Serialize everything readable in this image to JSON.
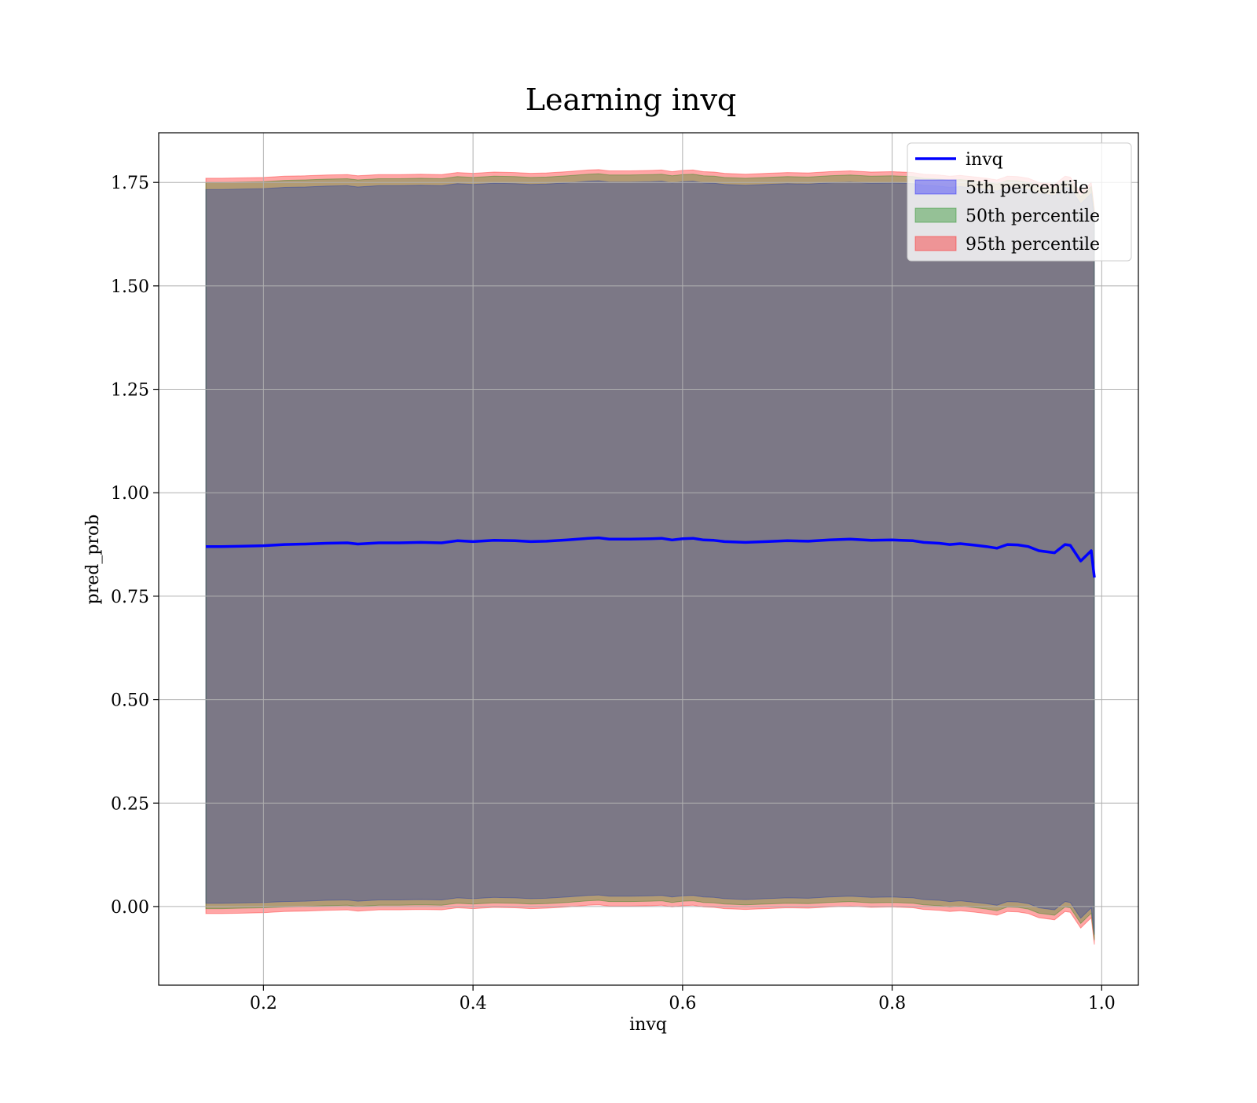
{
  "chart_data": {
    "type": "line",
    "title": "Learning invq",
    "xlabel": "invq",
    "ylabel": "pred_prob",
    "xlim": [
      0.1,
      1.035
    ],
    "ylim": [
      -0.19,
      1.87
    ],
    "grid": true,
    "legend_position": "top-right",
    "xticks": [
      {
        "value": 0.2,
        "label": "0.2"
      },
      {
        "value": 0.4,
        "label": "0.4"
      },
      {
        "value": 0.6,
        "label": "0.6"
      },
      {
        "value": 0.8,
        "label": "0.8"
      },
      {
        "value": 1.0,
        "label": "1.0"
      }
    ],
    "yticks": [
      {
        "value": 0.0,
        "label": "0.00"
      },
      {
        "value": 0.25,
        "label": "0.25"
      },
      {
        "value": 0.5,
        "label": "0.50"
      },
      {
        "value": 0.75,
        "label": "0.75"
      },
      {
        "value": 1.0,
        "label": "1.00"
      },
      {
        "value": 1.25,
        "label": "1.25"
      },
      {
        "value": 1.5,
        "label": "1.50"
      },
      {
        "value": 1.75,
        "label": "1.75"
      }
    ],
    "x": [
      0.145,
      0.16,
      0.18,
      0.2,
      0.22,
      0.24,
      0.26,
      0.28,
      0.29,
      0.31,
      0.33,
      0.35,
      0.37,
      0.385,
      0.4,
      0.42,
      0.44,
      0.455,
      0.47,
      0.49,
      0.51,
      0.52,
      0.53,
      0.55,
      0.57,
      0.58,
      0.59,
      0.6,
      0.61,
      0.62,
      0.63,
      0.64,
      0.66,
      0.68,
      0.7,
      0.72,
      0.74,
      0.76,
      0.78,
      0.8,
      0.82,
      0.83,
      0.845,
      0.855,
      0.865,
      0.88,
      0.89,
      0.9,
      0.91,
      0.92,
      0.93,
      0.94,
      0.955,
      0.965,
      0.97,
      0.98,
      0.99,
      0.993
    ],
    "series": [
      {
        "name": "invq",
        "color": "#0000ff",
        "values": [
          0.87,
          0.87,
          0.871,
          0.872,
          0.875,
          0.876,
          0.878,
          0.879,
          0.876,
          0.879,
          0.879,
          0.88,
          0.879,
          0.884,
          0.882,
          0.885,
          0.884,
          0.882,
          0.883,
          0.886,
          0.89,
          0.891,
          0.888,
          0.888,
          0.889,
          0.89,
          0.886,
          0.889,
          0.89,
          0.886,
          0.885,
          0.882,
          0.88,
          0.882,
          0.884,
          0.883,
          0.886,
          0.888,
          0.885,
          0.886,
          0.884,
          0.88,
          0.878,
          0.875,
          0.877,
          0.873,
          0.87,
          0.866,
          0.875,
          0.874,
          0.87,
          0.86,
          0.855,
          0.875,
          0.873,
          0.835,
          0.86,
          0.795
        ]
      }
    ],
    "bands": [
      {
        "name": "5th percentile",
        "color": "#0000ff",
        "lower": [
          0.008,
          0.008,
          0.009,
          0.01,
          0.012,
          0.013,
          0.015,
          0.016,
          0.013,
          0.016,
          0.016,
          0.017,
          0.016,
          0.021,
          0.019,
          0.022,
          0.021,
          0.019,
          0.02,
          0.023,
          0.027,
          0.028,
          0.025,
          0.025,
          0.026,
          0.027,
          0.023,
          0.026,
          0.027,
          0.023,
          0.022,
          0.019,
          0.017,
          0.019,
          0.021,
          0.02,
          0.023,
          0.025,
          0.022,
          0.023,
          0.021,
          0.017,
          0.015,
          0.012,
          0.014,
          0.01,
          0.007,
          0.003,
          0.012,
          0.011,
          0.007,
          -0.003,
          -0.008,
          0.012,
          0.01,
          -0.028,
          -0.003,
          -0.068
        ],
        "upper": [
          1.733,
          1.733,
          1.734,
          1.735,
          1.738,
          1.739,
          1.741,
          1.742,
          1.739,
          1.742,
          1.742,
          1.743,
          1.742,
          1.747,
          1.745,
          1.748,
          1.747,
          1.745,
          1.746,
          1.749,
          1.753,
          1.754,
          1.751,
          1.751,
          1.752,
          1.753,
          1.749,
          1.752,
          1.753,
          1.749,
          1.748,
          1.745,
          1.743,
          1.745,
          1.747,
          1.746,
          1.749,
          1.751,
          1.748,
          1.749,
          1.747,
          1.743,
          1.741,
          1.738,
          1.74,
          1.736,
          1.733,
          1.729,
          1.738,
          1.737,
          1.733,
          1.723,
          1.718,
          1.738,
          1.736,
          1.698,
          1.723,
          1.658
        ]
      },
      {
        "name": "50th percentile",
        "color": "#008000",
        "lower": [
          -0.005,
          -0.005,
          -0.004,
          -0.003,
          -0.001,
          0.0,
          0.002,
          0.003,
          0.0,
          0.003,
          0.003,
          0.004,
          0.003,
          0.008,
          0.006,
          0.009,
          0.008,
          0.006,
          0.007,
          0.01,
          0.014,
          0.015,
          0.012,
          0.012,
          0.013,
          0.014,
          0.01,
          0.013,
          0.014,
          0.01,
          0.009,
          0.006,
          0.004,
          0.006,
          0.008,
          0.007,
          0.01,
          0.012,
          0.009,
          0.01,
          0.008,
          0.004,
          0.002,
          -0.001,
          0.001,
          -0.003,
          -0.006,
          -0.01,
          -0.001,
          -0.002,
          -0.006,
          -0.016,
          -0.021,
          -0.001,
          -0.003,
          -0.041,
          -0.016,
          -0.081
        ],
        "upper": [
          1.75,
          1.75,
          1.751,
          1.752,
          1.755,
          1.756,
          1.758,
          1.759,
          1.756,
          1.759,
          1.759,
          1.76,
          1.759,
          1.764,
          1.762,
          1.765,
          1.764,
          1.762,
          1.763,
          1.766,
          1.77,
          1.771,
          1.768,
          1.768,
          1.769,
          1.77,
          1.766,
          1.769,
          1.77,
          1.766,
          1.765,
          1.762,
          1.76,
          1.762,
          1.764,
          1.763,
          1.766,
          1.768,
          1.765,
          1.766,
          1.764,
          1.76,
          1.758,
          1.755,
          1.757,
          1.753,
          1.75,
          1.746,
          1.755,
          1.754,
          1.75,
          1.74,
          1.735,
          1.755,
          1.753,
          1.715,
          1.74,
          1.675
        ]
      },
      {
        "name": "95th percentile",
        "color": "#ff0000",
        "lower": [
          -0.017,
          -0.017,
          -0.016,
          -0.015,
          -0.012,
          -0.011,
          -0.009,
          -0.008,
          -0.011,
          -0.008,
          -0.008,
          -0.007,
          -0.008,
          -0.003,
          -0.005,
          -0.002,
          -0.003,
          -0.005,
          -0.004,
          -0.001,
          0.003,
          0.004,
          0.001,
          0.001,
          0.002,
          0.003,
          -0.001,
          0.002,
          0.003,
          -0.001,
          -0.002,
          -0.005,
          -0.007,
          -0.005,
          -0.003,
          -0.004,
          -0.001,
          0.001,
          -0.002,
          -0.001,
          -0.003,
          -0.007,
          -0.009,
          -0.012,
          -0.01,
          -0.014,
          -0.017,
          -0.021,
          -0.012,
          -0.013,
          -0.017,
          -0.027,
          -0.032,
          -0.012,
          -0.014,
          -0.052,
          -0.027,
          -0.092
        ],
        "upper": [
          1.76,
          1.76,
          1.761,
          1.762,
          1.765,
          1.766,
          1.768,
          1.769,
          1.766,
          1.769,
          1.769,
          1.77,
          1.769,
          1.774,
          1.772,
          1.775,
          1.774,
          1.772,
          1.773,
          1.776,
          1.78,
          1.781,
          1.778,
          1.778,
          1.779,
          1.78,
          1.776,
          1.779,
          1.78,
          1.776,
          1.775,
          1.772,
          1.77,
          1.772,
          1.774,
          1.773,
          1.776,
          1.778,
          1.775,
          1.776,
          1.774,
          1.77,
          1.768,
          1.765,
          1.767,
          1.763,
          1.76,
          1.756,
          1.765,
          1.764,
          1.76,
          1.75,
          1.745,
          1.765,
          1.763,
          1.725,
          1.75,
          1.685
        ]
      }
    ],
    "legend": [
      {
        "label": "invq",
        "kind": "line",
        "color": "#0000ff"
      },
      {
        "label": "5th percentile",
        "kind": "patch",
        "color": "#0000ff"
      },
      {
        "label": "50th percentile",
        "kind": "patch",
        "color": "#008000"
      },
      {
        "label": "95th percentile",
        "kind": "patch",
        "color": "#ff0000"
      }
    ]
  }
}
